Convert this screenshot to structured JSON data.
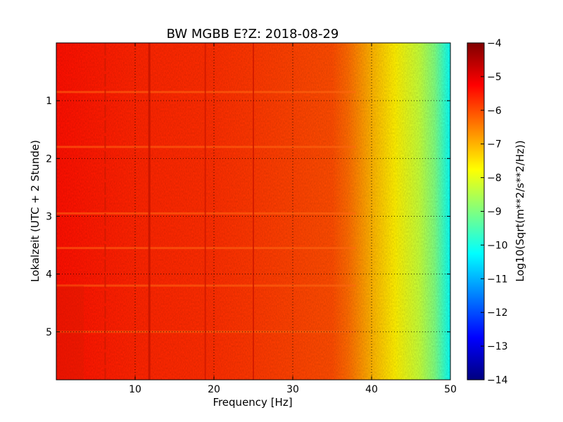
{
  "chart_data": {
    "type": "heatmap",
    "title": "BW MGBB E?Z: 2018-08-29",
    "xlabel": "Frequency [Hz]",
    "ylabel": "Lokalzeit (UTC + 2 Stunde)",
    "xlim": [
      0,
      50
    ],
    "ylim": [
      0,
      5.83
    ],
    "y_inverted": true,
    "x_ticks": [
      10,
      20,
      30,
      40,
      50
    ],
    "y_ticks": [
      1,
      2,
      3,
      4,
      5
    ],
    "grid": true,
    "colormap": "jet",
    "colorbar": {
      "label": "Log10(Sqrt(m**2/s**2/Hz))",
      "min": -14,
      "max": -4,
      "ticks": [
        -4,
        -5,
        -6,
        -7,
        -8,
        -9,
        -10,
        -11,
        -12,
        -13,
        -14
      ]
    },
    "spectrum_profile": [
      {
        "freq": 0,
        "value": -5.4
      },
      {
        "freq": 5,
        "value": -5.5
      },
      {
        "freq": 10,
        "value": -5.6
      },
      {
        "freq": 20,
        "value": -5.7
      },
      {
        "freq": 30,
        "value": -5.9
      },
      {
        "freq": 35,
        "value": -6.0
      },
      {
        "freq": 37,
        "value": -6.3
      },
      {
        "freq": 40,
        "value": -7.0
      },
      {
        "freq": 43,
        "value": -7.6
      },
      {
        "freq": 46,
        "value": -8.3
      },
      {
        "freq": 48,
        "value": -9.0
      },
      {
        "freq": 50,
        "value": -10.2
      }
    ],
    "persistent_lines_hz": [
      6.2,
      11.8,
      18.9,
      25.0
    ],
    "time_bands_h": [
      0.85,
      1.8,
      2.95,
      3.55,
      4.2,
      5.0
    ]
  }
}
